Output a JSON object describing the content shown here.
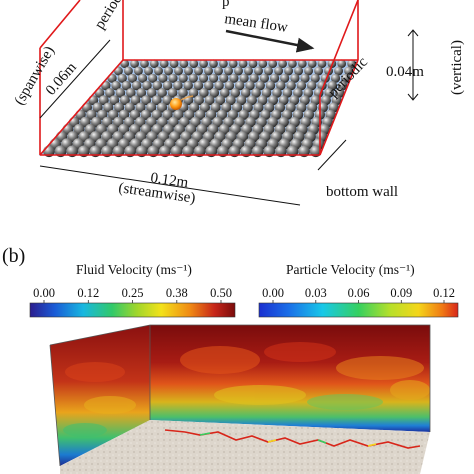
{
  "panel_a": {
    "flow_label": "mean flow",
    "top_label_partial": "p",
    "left_periodic_label": "periodic",
    "right_periodic_label": "periodic",
    "spanwise_dim": "0.06m",
    "spanwise_label": "(spanwise)",
    "streamwise_dim": "0.12m",
    "streamwise_label": "(streamwise)",
    "vertical_dim": "0.04m",
    "vertical_label": "(vertical)",
    "bottom_wall_label": "bottom wall"
  },
  "panel_b": {
    "panel_label": "(b)",
    "fluid_colorbar": {
      "title": "Fluid Velocity (ms⁻¹)",
      "min": 0.0,
      "max": 0.5,
      "ticks": [
        "0.00",
        "0.12",
        "0.25",
        "0.38",
        "0.50"
      ]
    },
    "particle_colorbar": {
      "title": "Particle Velocity (ms⁻¹)",
      "min": 0.0,
      "max": 0.12,
      "ticks": [
        "0.00",
        "0.03",
        "0.06",
        "0.09",
        "0.12"
      ]
    }
  },
  "colors": {
    "domain_edges": "#e0181a",
    "bed_plane": "#a9c7ef",
    "sphere": "#6b6b6b",
    "highlight_particle": "#ffa31a",
    "colormap": [
      "#2b1d8e",
      "#1a5bd6",
      "#18b7e0",
      "#31c96a",
      "#9fd62b",
      "#f3e21a",
      "#f08a14",
      "#c7261a",
      "#7a0b0b"
    ]
  }
}
